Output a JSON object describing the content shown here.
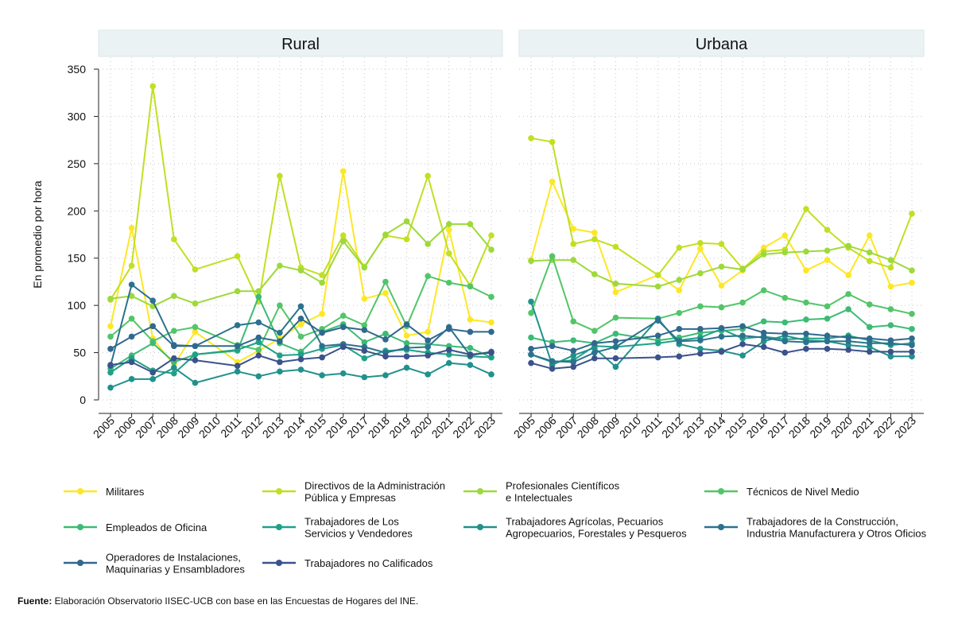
{
  "chart_data": {
    "type": "line",
    "ylabel": "En promedio por hora",
    "ylim": [
      0,
      350
    ],
    "yticks": [
      0,
      50,
      100,
      150,
      200,
      250,
      300,
      350
    ],
    "x": [
      "2005",
      "2006",
      "2007",
      "2008",
      "2009",
      "2010",
      "2011",
      "2012",
      "2013",
      "2014",
      "2015",
      "2016",
      "2017",
      "2018",
      "2019",
      "2020",
      "2021",
      "2022",
      "2023"
    ],
    "colors": {
      "Militares": "#fde725",
      "Directivos": "#c2df23",
      "Profesionales": "#9dd93b",
      "Tecnicos": "#52c569",
      "Empleados": "#3cbb75",
      "Servicios": "#1fa188",
      "Agricolas": "#21918c",
      "Construccion": "#2c728e",
      "Operadores": "#31688e",
      "NoCalificados": "#3b528b"
    },
    "panels": [
      {
        "title": "Rural",
        "series": [
          {
            "key": "Militares",
            "values": [
              78,
              182,
              65,
              37,
              72,
              null,
              40,
              52,
              65,
              80,
              91,
              242,
              107,
              113,
              68,
              72,
              180,
              85,
              82
            ]
          },
          {
            "key": "Directivos",
            "values": [
              106,
              142,
              332,
              170,
              138,
              null,
              152,
              104,
              237,
              140,
              132,
              174,
              141,
              174,
              170,
              237,
              155,
              121,
              174
            ]
          },
          {
            "key": "Profesionales",
            "values": [
              107,
              110,
              99,
              110,
              102,
              null,
              115,
              115,
              142,
              137,
              124,
              168,
              140,
              175,
              189,
              165,
              186,
              186,
              159
            ]
          },
          {
            "key": "Tecnicos",
            "values": [
              67,
              86,
              62,
              73,
              77,
              null,
              58,
              53,
              100,
              67,
              75,
              89,
              79,
              125,
              78,
              131,
              124,
              120,
              109
            ]
          },
          {
            "key": "Empleados",
            "values": [
              33,
              47,
              60,
              40,
              48,
              null,
              52,
              109,
              60,
              51,
              72,
              80,
              61,
              70,
              60,
              59,
              57,
              55,
              45
            ]
          },
          {
            "key": "Servicios",
            "values": [
              29,
              44,
              31,
              28,
              48,
              null,
              53,
              61,
              47,
              48,
              54,
              58,
              44,
              52,
              53,
              50,
              48,
              46,
              45
            ]
          },
          {
            "key": "Agricolas",
            "values": [
              13,
              22,
              22,
              34,
              18,
              null,
              30,
              25,
              30,
              32,
              26,
              28,
              24,
              26,
              34,
              27,
              39,
              37,
              27
            ]
          },
          {
            "key": "Construccion",
            "values": [
              36,
              122,
              105,
              58,
              57,
              null,
              79,
              82,
              71,
              99,
              57,
              59,
              56,
              50,
              55,
              56,
              77,
              47,
              51
            ]
          },
          {
            "key": "Operadores",
            "values": [
              54,
              67,
              78,
              57,
              57,
              null,
              57,
              66,
              62,
              86,
              71,
              77,
              74,
              64,
              80,
              63,
              75,
              72,
              72
            ]
          },
          {
            "key": "NoCalificados",
            "values": [
              37,
              40,
              29,
              44,
              42,
              null,
              36,
              47,
              40,
              43,
              45,
              56,
              52,
              46,
              46,
              47,
              53,
              48,
              50
            ]
          }
        ]
      },
      {
        "title": "Urbana",
        "series": [
          {
            "key": "Militares",
            "values": [
              148,
              231,
              181,
              177,
              114,
              null,
              132,
              116,
              160,
              121,
              137,
              161,
              174,
              137,
              148,
              132,
              174,
              120,
              124
            ]
          },
          {
            "key": "Directivos",
            "values": [
              277,
              273,
              165,
              170,
              162,
              null,
              132,
              161,
              166,
              165,
              139,
              157,
              159,
              202,
              180,
              161,
              147,
              140,
              197
            ]
          },
          {
            "key": "Profesionales",
            "values": [
              147,
              148,
              148,
              133,
              123,
              null,
              120,
              127,
              134,
              141,
              138,
              154,
              156,
              157,
              158,
              163,
              156,
              148,
              137
            ]
          },
          {
            "key": "Tecnicos",
            "values": [
              92,
              152,
              83,
              73,
              87,
              null,
              86,
              92,
              99,
              98,
              103,
              116,
              108,
              103,
              99,
              112,
              101,
              96,
              91
            ]
          },
          {
            "key": "Empleados",
            "values": [
              66,
              61,
              63,
              60,
              70,
              null,
              63,
              66,
              71,
              73,
              75,
              83,
              82,
              85,
              86,
              96,
              77,
              79,
              75
            ]
          },
          {
            "key": "Servicios",
            "values": [
              48,
              40,
              42,
              57,
              56,
              null,
              60,
              63,
              66,
              75,
              65,
              67,
              64,
              65,
              65,
              68,
              63,
              58,
              60
            ]
          },
          {
            "key": "Agricolas",
            "values": [
              104,
              37,
              47,
              55,
              35,
              null,
              86,
              59,
              54,
              52,
              47,
              62,
              68,
              63,
              62,
              58,
              56,
              46,
              46
            ]
          },
          {
            "key": "Construccion",
            "values": [
              48,
              41,
              40,
              50,
              56,
              null,
              84,
              62,
              63,
              67,
              68,
              66,
              62,
              61,
              62,
              62,
              60,
              60,
              58
            ]
          },
          {
            "key": "Operadores",
            "values": [
              54,
              57,
              52,
              60,
              62,
              null,
              68,
              75,
              75,
              76,
              78,
              71,
              70,
              70,
              68,
              66,
              65,
              63,
              65
            ]
          },
          {
            "key": "NoCalificados",
            "values": [
              39,
              33,
              35,
              44,
              44,
              null,
              45,
              46,
              49,
              51,
              59,
              56,
              50,
              54,
              54,
              53,
              51,
              51,
              51
            ]
          }
        ]
      }
    ],
    "legend": [
      {
        "key": "Militares",
        "lines": [
          "Militares"
        ]
      },
      {
        "key": "Directivos",
        "lines": [
          "Directivos de la Administración",
          "Pública y Empresas"
        ]
      },
      {
        "key": "Profesionales",
        "lines": [
          "Profesionales Científicos",
          "e Intelectuales"
        ]
      },
      {
        "key": "Tecnicos",
        "lines": [
          "Técnicos de Nivel Medio"
        ]
      },
      {
        "key": "Empleados",
        "lines": [
          "Empleados de Oficina"
        ]
      },
      {
        "key": "Servicios",
        "lines": [
          "Trabajadores de Los",
          "Servicios y Vendedores"
        ]
      },
      {
        "key": "Agricolas",
        "lines": [
          "Trabajadores Agrícolas, Pecuarios",
          "Agropecuarios, Forestales y Pesqueros"
        ]
      },
      {
        "key": "Construccion",
        "lines": [
          "Trabajadores de la Construcción,",
          "Industria Manufacturera y Otros Oficios"
        ]
      },
      {
        "key": "Operadores",
        "lines": [
          "Operadores de Instalaciones,",
          "Maquinarias y Ensambladores"
        ]
      },
      {
        "key": "NoCalificados",
        "lines": [
          "Trabajadores no Calificados"
        ]
      }
    ]
  },
  "source": {
    "label": "Fuente:",
    "text": " Elaboración Observatorio IISEC-UCB con base en las Encuestas de Hogares del INE."
  }
}
